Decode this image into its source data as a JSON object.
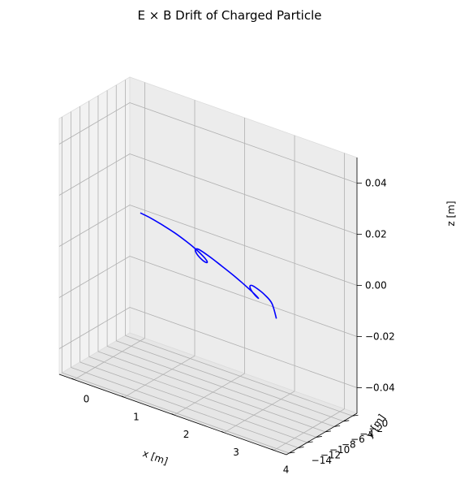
{
  "chart_data": {
    "type": "line3d",
    "title": "E × B Drift of Charged Particle",
    "xlabel": "x [m]",
    "ylabel": "y [m]",
    "zlabel": "z [m]",
    "xlim": [
      -0.3,
      4.25
    ],
    "ylim": [
      -14.6,
      1.0
    ],
    "zlim": [
      -0.05,
      0.05
    ],
    "xticks": [
      0,
      1,
      2,
      3,
      4
    ],
    "xtick_labels": [
      "0",
      "1",
      "2",
      "3",
      "4"
    ],
    "yticks": [
      0,
      -2,
      -4,
      -6,
      -8,
      -10,
      -12,
      -14
    ],
    "ytick_labels": [
      "0",
      "−2",
      "−4",
      "−6",
      "−8",
      "−10",
      "−12",
      "−14"
    ],
    "zticks": [
      0.04,
      0.02,
      0.0,
      -0.02,
      -0.04
    ],
    "ztick_labels": [
      "0.04",
      "0.02",
      "0.00",
      "−0.02",
      "−0.04"
    ],
    "grid": true,
    "series": [
      {
        "color": "#0000ff",
        "description": "cycloidal drift trajectory in the z = 0 plane, two and a half loops, x from 0 to ~3.95, y from 0 to ~-13.5",
        "x": [
          0.0,
          0.06,
          0.25,
          0.52,
          0.85,
          1.18,
          1.48,
          1.71,
          1.85,
          1.89,
          1.84,
          1.73,
          1.6,
          1.5,
          1.46,
          1.5,
          1.63,
          1.86,
          2.15,
          2.48,
          2.79,
          3.05,
          3.22,
          3.29,
          3.27,
          3.18,
          3.06,
          2.96,
          2.92,
          2.95,
          3.07,
          3.29,
          3.57,
          3.95
        ],
        "y": [
          0.0,
          -0.05,
          -0.35,
          -0.95,
          -1.8,
          -2.85,
          -3.95,
          -4.95,
          -5.7,
          -6.1,
          -6.1,
          -5.7,
          -5.05,
          -4.35,
          -3.85,
          -3.7,
          -4.0,
          -4.7,
          -5.7,
          -6.85,
          -8.05,
          -9.1,
          -9.85,
          -10.2,
          -10.15,
          -9.75,
          -9.1,
          -8.4,
          -7.9,
          -7.75,
          -8.05,
          -8.85,
          -10.3,
          -13.5
        ],
        "z": [
          0.0,
          0.0,
          0.0,
          0.0,
          0.0,
          0.0,
          0.0,
          0.0,
          0.0,
          0.0,
          0.0,
          0.0,
          0.0,
          0.0,
          0.0,
          0.0,
          0.0,
          0.0,
          0.0,
          0.0,
          0.0,
          0.0,
          0.0,
          0.0,
          0.0,
          0.0,
          0.0,
          0.0,
          0.0,
          0.0,
          0.0,
          0.0,
          0.0,
          0.0
        ]
      }
    ]
  }
}
